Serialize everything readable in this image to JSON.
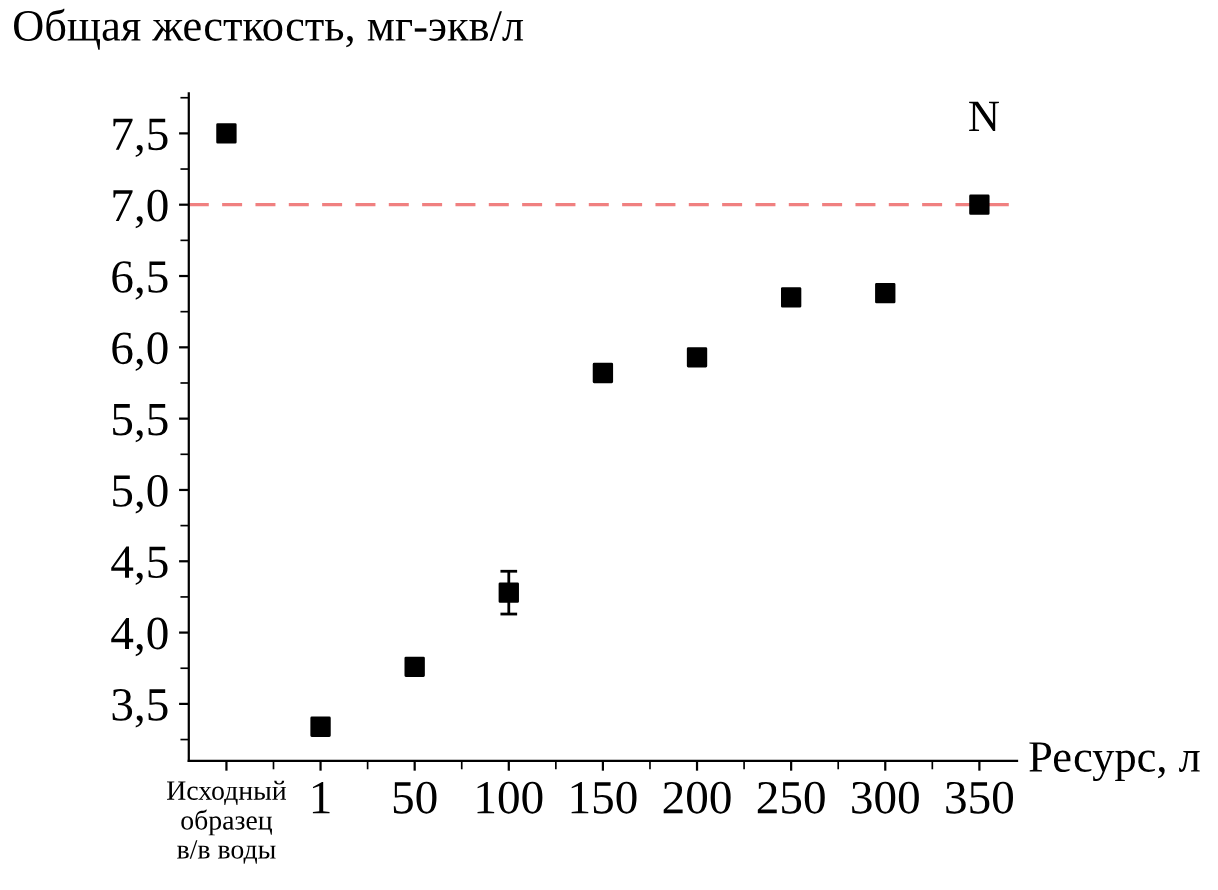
{
  "chart_data": {
    "type": "scatter",
    "ylabel": "Общая жесткость, мг-экв/л",
    "xlabel": "Ресурс, л",
    "categories": [
      "Исходный\nобразец\nв/в воды",
      "1",
      "50",
      "100",
      "150",
      "200",
      "250",
      "300",
      "350"
    ],
    "values": [
      7.5,
      3.34,
      3.76,
      4.28,
      5.82,
      5.93,
      6.35,
      6.38,
      7.0
    ],
    "errors": [
      null,
      null,
      null,
      [
        4.13,
        4.43
      ],
      null,
      null,
      null,
      null,
      null
    ],
    "color": "#000000",
    "marker": "square",
    "ylim": [
      3.1,
      7.78
    ],
    "yticks": [
      {
        "value": 3.5,
        "label": "3,5"
      },
      {
        "value": 4.0,
        "label": "4,0"
      },
      {
        "value": 4.5,
        "label": "4,5"
      },
      {
        "value": 5.0,
        "label": "5,0"
      },
      {
        "value": 5.5,
        "label": "5,5"
      },
      {
        "value": 6.0,
        "label": "6,0"
      },
      {
        "value": 6.5,
        "label": "6,5"
      },
      {
        "value": 7.0,
        "label": "7,0"
      },
      {
        "value": 7.5,
        "label": "7,5"
      }
    ],
    "ref_lines": [
      {
        "axis": "y",
        "value": 7.0,
        "color": "#f08080",
        "line_style": "dashed"
      }
    ],
    "annotations": [
      "N"
    ],
    "grid": false,
    "legend": false
  }
}
